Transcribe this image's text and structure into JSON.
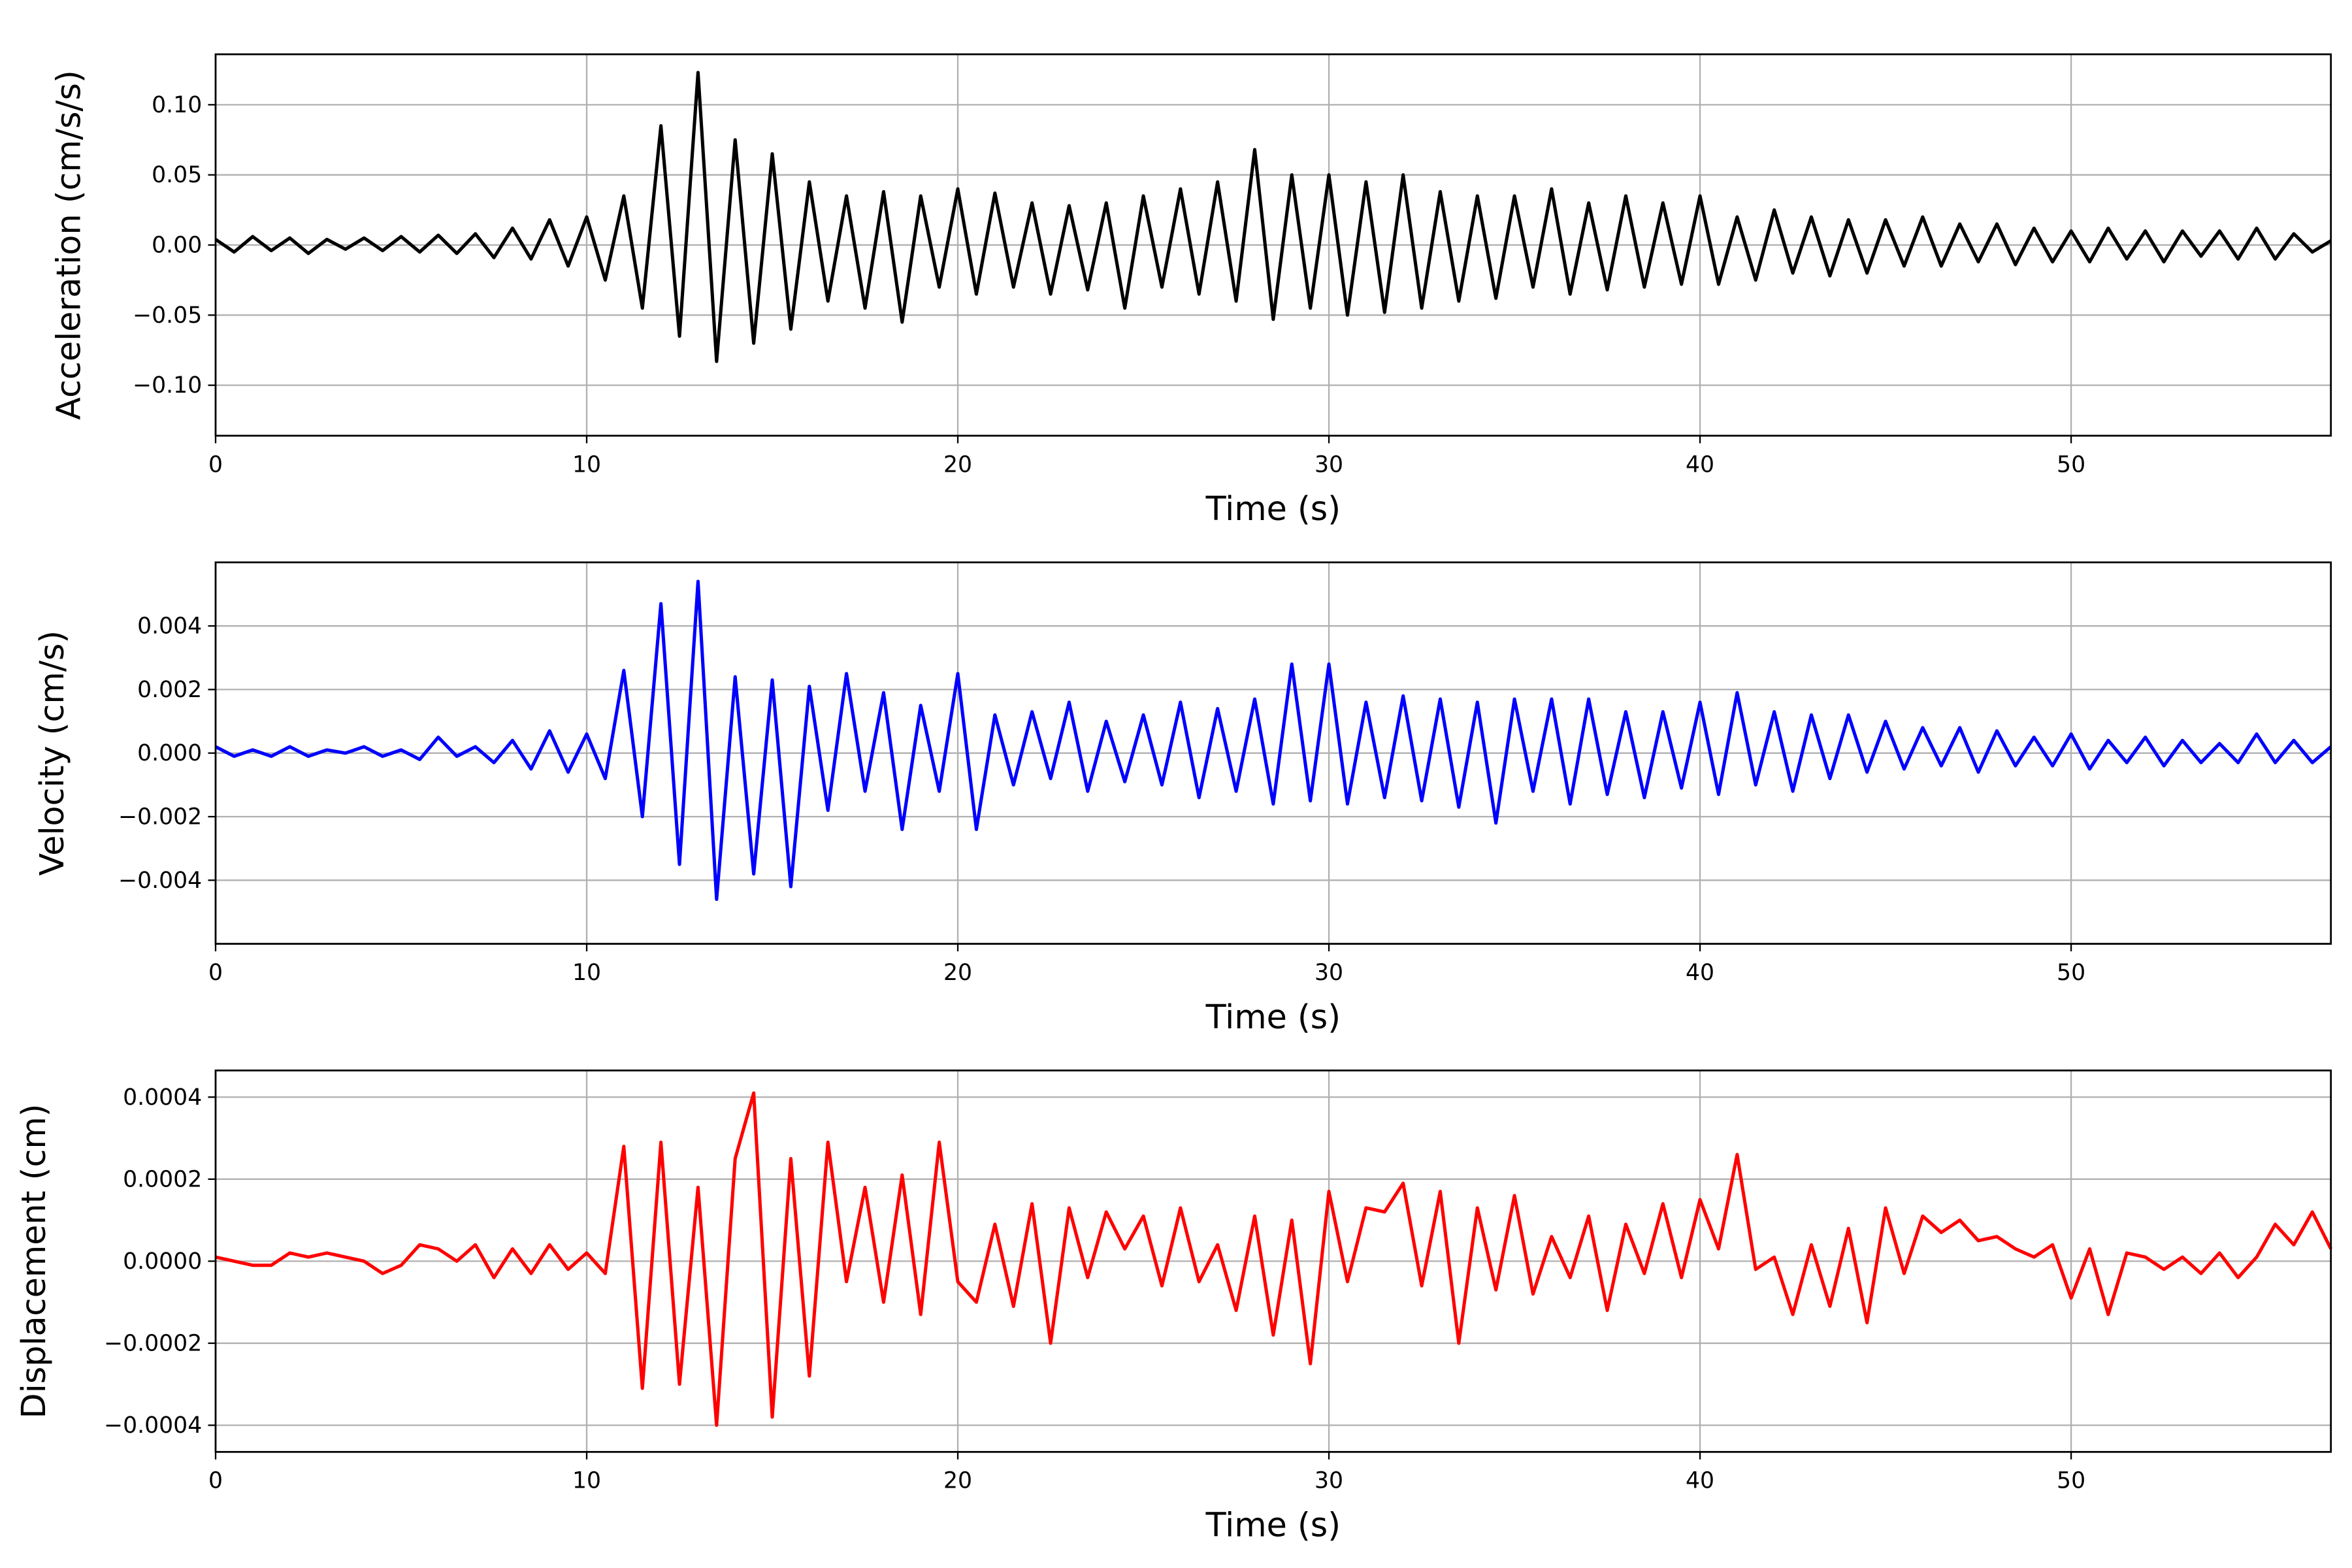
{
  "chart_data": [
    {
      "type": "line",
      "ylabel": "Acceleration (cm/s/s)",
      "xlabel": "Time (s)",
      "color": "#000000",
      "grid": true,
      "xlim": [
        0,
        57
      ],
      "xticks": [
        0,
        10,
        20,
        30,
        40,
        50
      ],
      "ylim": [
        -0.136,
        0.136
      ],
      "yticks": [
        {
          "value": -0.1,
          "label": "−0.10"
        },
        {
          "value": -0.05,
          "label": "−0.05"
        },
        {
          "value": 0,
          "label": "0.00"
        },
        {
          "value": 0.05,
          "label": "0.05"
        },
        {
          "value": 0.1,
          "label": "0.10"
        }
      ],
      "x": [
        0,
        0.5,
        1,
        1.5,
        2,
        2.5,
        3,
        3.5,
        4,
        4.5,
        5,
        5.5,
        6,
        6.5,
        7,
        7.5,
        8,
        8.5,
        9,
        9.5,
        10,
        10.5,
        11,
        11.5,
        12,
        12.5,
        13,
        13.5,
        14,
        14.5,
        15,
        15.5,
        16,
        16.5,
        17,
        17.5,
        18,
        18.5,
        19,
        19.5,
        20,
        20.5,
        21,
        21.5,
        22,
        22.5,
        23,
        23.5,
        24,
        24.5,
        25,
        25.5,
        26,
        26.5,
        27,
        27.5,
        28,
        28.5,
        29,
        29.5,
        30,
        30.5,
        31,
        31.5,
        32,
        32.5,
        33,
        33.5,
        34,
        34.5,
        35,
        35.5,
        36,
        36.5,
        37,
        37.5,
        38,
        38.5,
        39,
        39.5,
        40,
        40.5,
        41,
        41.5,
        42,
        42.5,
        43,
        43.5,
        44,
        44.5,
        45,
        45.5,
        46,
        46.5,
        47,
        47.5,
        48,
        48.5,
        49,
        49.5,
        50,
        50.5,
        51,
        51.5,
        52,
        52.5,
        53,
        53.5,
        54,
        54.5,
        55,
        55.5,
        56,
        56.5,
        57
      ],
      "values": [
        0.004,
        -0.005,
        0.006,
        -0.004,
        0.005,
        -0.006,
        0.004,
        -0.003,
        0.005,
        -0.004,
        0.006,
        -0.005,
        0.007,
        -0.006,
        0.008,
        -0.009,
        0.012,
        -0.01,
        0.018,
        -0.015,
        0.02,
        -0.025,
        0.035,
        -0.045,
        0.085,
        -0.065,
        0.123,
        -0.083,
        0.075,
        -0.07,
        0.065,
        -0.06,
        0.045,
        -0.04,
        0.035,
        -0.045,
        0.038,
        -0.055,
        0.035,
        -0.03,
        0.04,
        -0.035,
        0.037,
        -0.03,
        0.03,
        -0.035,
        0.028,
        -0.032,
        0.03,
        -0.045,
        0.035,
        -0.03,
        0.04,
        -0.035,
        0.045,
        -0.04,
        0.068,
        -0.053,
        0.05,
        -0.045,
        0.05,
        -0.05,
        0.045,
        -0.048,
        0.05,
        -0.045,
        0.038,
        -0.04,
        0.035,
        -0.038,
        0.035,
        -0.03,
        0.04,
        -0.035,
        0.03,
        -0.032,
        0.035,
        -0.03,
        0.03,
        -0.028,
        0.035,
        -0.028,
        0.02,
        -0.025,
        0.025,
        -0.02,
        0.02,
        -0.022,
        0.018,
        -0.02,
        0.018,
        -0.015,
        0.02,
        -0.015,
        0.015,
        -0.012,
        0.015,
        -0.014,
        0.012,
        -0.012,
        0.01,
        -0.012,
        0.012,
        -0.01,
        0.01,
        -0.012,
        0.01,
        -0.008,
        0.01,
        -0.01,
        0.012,
        -0.01,
        0.008,
        -0.005,
        0.003
      ]
    },
    {
      "type": "line",
      "ylabel": "Velocity (cm/s)",
      "xlabel": "Time (s)",
      "color": "#0000ff",
      "grid": true,
      "xlim": [
        0,
        57
      ],
      "xticks": [
        0,
        10,
        20,
        30,
        40,
        50
      ],
      "ylim": [
        -0.006,
        0.006
      ],
      "yticks": [
        {
          "value": -0.004,
          "label": "−0.004"
        },
        {
          "value": -0.002,
          "label": "−0.002"
        },
        {
          "value": 0,
          "label": "0.000"
        },
        0.002,
        0.004
      ],
      "x": [
        0,
        0.5,
        1,
        1.5,
        2,
        2.5,
        3,
        3.5,
        4,
        4.5,
        5,
        5.5,
        6,
        6.5,
        7,
        7.5,
        8,
        8.5,
        9,
        9.5,
        10,
        10.5,
        11,
        11.5,
        12,
        12.5,
        13,
        13.5,
        14,
        14.5,
        15,
        15.5,
        16,
        16.5,
        17,
        17.5,
        18,
        18.5,
        19,
        19.5,
        20,
        20.5,
        21,
        21.5,
        22,
        22.5,
        23,
        23.5,
        24,
        24.5,
        25,
        25.5,
        26,
        26.5,
        27,
        27.5,
        28,
        28.5,
        29,
        29.5,
        30,
        30.5,
        31,
        31.5,
        32,
        32.5,
        33,
        33.5,
        34,
        34.5,
        35,
        35.5,
        36,
        36.5,
        37,
        37.5,
        38,
        38.5,
        39,
        39.5,
        40,
        40.5,
        41,
        41.5,
        42,
        42.5,
        43,
        43.5,
        44,
        44.5,
        45,
        45.5,
        46,
        46.5,
        47,
        47.5,
        48,
        48.5,
        49,
        49.5,
        50,
        50.5,
        51,
        51.5,
        52,
        52.5,
        53,
        53.5,
        54,
        54.5,
        55,
        55.5,
        56,
        56.5,
        57
      ],
      "values": [
        0.0002,
        -0.0001,
        0.0001,
        -0.0001,
        0.0002,
        -0.0001,
        0.0001,
        0,
        0.0002,
        -0.0001,
        0.0001,
        -0.0002,
        0.0005,
        -0.0001,
        0.0002,
        -0.0003,
        0.0004,
        -0.0005,
        0.0007,
        -0.0006,
        0.0006,
        -0.0008,
        0.0026,
        -0.002,
        0.0047,
        -0.0035,
        0.0054,
        -0.0046,
        0.0024,
        -0.0038,
        0.0023,
        -0.0042,
        0.0021,
        -0.0018,
        0.0025,
        -0.0012,
        0.0019,
        -0.0024,
        0.0015,
        -0.0012,
        0.0025,
        -0.0024,
        0.0012,
        -0.001,
        0.0013,
        -0.0008,
        0.0016,
        -0.0012,
        0.001,
        -0.0009,
        0.0012,
        -0.001,
        0.0016,
        -0.0014,
        0.0014,
        -0.0012,
        0.0017,
        -0.0016,
        0.0028,
        -0.0015,
        0.0028,
        -0.0016,
        0.0016,
        -0.0014,
        0.0018,
        -0.0015,
        0.0017,
        -0.0017,
        0.0016,
        -0.0022,
        0.0017,
        -0.0012,
        0.0017,
        -0.0016,
        0.0017,
        -0.0013,
        0.0013,
        -0.0014,
        0.0013,
        -0.0011,
        0.0016,
        -0.0013,
        0.0019,
        -0.001,
        0.0013,
        -0.0012,
        0.0012,
        -0.0008,
        0.0012,
        -0.0006,
        0.001,
        -0.0005,
        0.0008,
        -0.0004,
        0.0008,
        -0.0006,
        0.0007,
        -0.0004,
        0.0005,
        -0.0004,
        0.0006,
        -0.0005,
        0.0004,
        -0.0003,
        0.0005,
        -0.0004,
        0.0004,
        -0.0003,
        0.0003,
        -0.0003,
        0.0006,
        -0.0003,
        0.0004,
        -0.0003,
        0.0002
      ]
    },
    {
      "type": "line",
      "ylabel": "Displacement (cm)",
      "xlabel": "Time (s)",
      "color": "#ff0000",
      "grid": true,
      "xlim": [
        0,
        57
      ],
      "xticks": [
        0,
        10,
        20,
        30,
        40,
        50
      ],
      "ylim": [
        -0.000465,
        0.000465
      ],
      "yticks": [
        {
          "value": -0.0004,
          "label": "−0.0004"
        },
        {
          "value": -0.0002,
          "label": "−0.0002"
        },
        {
          "value": 0,
          "label": "0.0000"
        },
        0.0002,
        0.0004
      ],
      "x": [
        0,
        0.5,
        1,
        1.5,
        2,
        2.5,
        3,
        3.5,
        4,
        4.5,
        5,
        5.5,
        6,
        6.5,
        7,
        7.5,
        8,
        8.5,
        9,
        9.5,
        10,
        10.5,
        11,
        11.5,
        12,
        12.5,
        13,
        13.5,
        14,
        14.5,
        15,
        15.5,
        16,
        16.5,
        17,
        17.5,
        18,
        18.5,
        19,
        19.5,
        20,
        20.5,
        21,
        21.5,
        22,
        22.5,
        23,
        23.5,
        24,
        24.5,
        25,
        25.5,
        26,
        26.5,
        27,
        27.5,
        28,
        28.5,
        29,
        29.5,
        30,
        30.5,
        31,
        31.5,
        32,
        32.5,
        33,
        33.5,
        34,
        34.5,
        35,
        35.5,
        36,
        36.5,
        37,
        37.5,
        38,
        38.5,
        39,
        39.5,
        40,
        40.5,
        41,
        41.5,
        42,
        42.5,
        43,
        43.5,
        44,
        44.5,
        45,
        45.5,
        46,
        46.5,
        47,
        47.5,
        48,
        48.5,
        49,
        49.5,
        50,
        50.5,
        51,
        51.5,
        52,
        52.5,
        53,
        53.5,
        54,
        54.5,
        55,
        55.5,
        56,
        56.5,
        57
      ],
      "values": [
        1e-05,
        0,
        -1e-05,
        -1e-05,
        2e-05,
        1e-05,
        2e-05,
        1e-05,
        0,
        -3e-05,
        -1e-05,
        4e-05,
        3e-05,
        0,
        4e-05,
        -4e-05,
        3e-05,
        -3e-05,
        4e-05,
        -2e-05,
        2e-05,
        -3e-05,
        0.00028,
        -0.00031,
        0.00029,
        -0.0003,
        0.00018,
        -0.0004,
        0.00025,
        0.00041,
        -0.00038,
        0.00025,
        -0.00028,
        0.00029,
        -5e-05,
        0.00018,
        -0.0001,
        0.00021,
        -0.00013,
        0.00029,
        -5e-05,
        -0.0001,
        9e-05,
        -0.00011,
        0.00014,
        -0.0002,
        0.00013,
        -4e-05,
        0.00012,
        3e-05,
        0.00011,
        -6e-05,
        0.00013,
        -5e-05,
        4e-05,
        -0.00012,
        0.00011,
        -0.00018,
        0.0001,
        -0.00025,
        0.00017,
        -5e-05,
        0.00013,
        0.00012,
        0.00019,
        -6e-05,
        0.00017,
        -0.0002,
        0.00013,
        -7e-05,
        0.00016,
        -8e-05,
        6e-05,
        -4e-05,
        0.00011,
        -0.00012,
        9e-05,
        -3e-05,
        0.00014,
        -4e-05,
        0.00015,
        3e-05,
        0.00026,
        -2e-05,
        1e-05,
        -0.00013,
        4e-05,
        -0.00011,
        8e-05,
        -0.00015,
        0.00013,
        -3e-05,
        0.00011,
        7e-05,
        0.0001,
        5e-05,
        6e-05,
        3e-05,
        1e-05,
        4e-05,
        -9e-05,
        3e-05,
        -0.00013,
        2e-05,
        1e-05,
        -2e-05,
        1e-05,
        -3e-05,
        2e-05,
        -4e-05,
        1e-05,
        9e-05,
        4e-05,
        0.00012,
        3e-05
      ]
    }
  ]
}
